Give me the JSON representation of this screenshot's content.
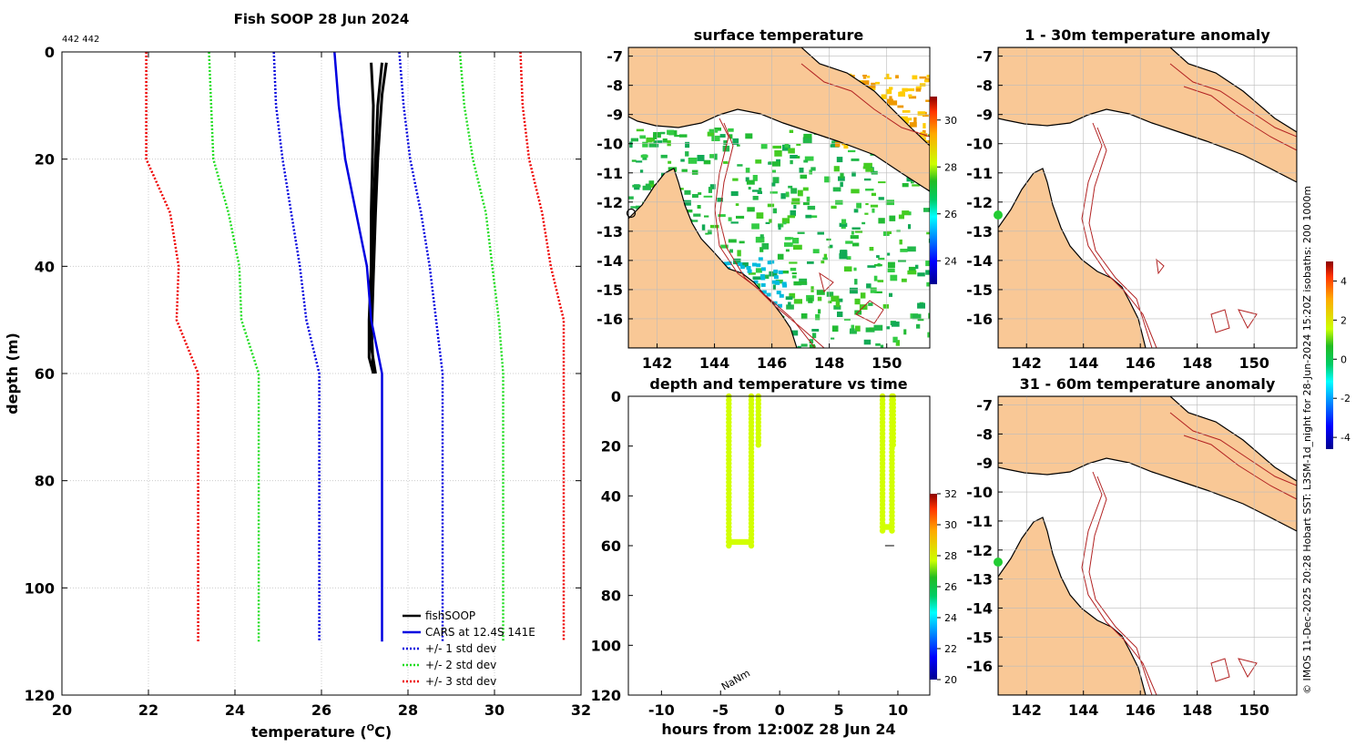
{
  "colors": {
    "land": "#f9c896",
    "coast": "#000000",
    "isobath": "#b22222",
    "fish": "#000000",
    "cars": "#0000e0",
    "sd1": "#0000dd",
    "sd2": "#22dd22",
    "sd3": "#ee0000",
    "surface_green": "#d2ff00",
    "station": "#22cc33",
    "grid": "#c8c8c8"
  },
  "chart_data": [
    {
      "id": "profile",
      "type": "line",
      "title": "Fish SOOP 28 Jun 2024",
      "corner_label": "442 442",
      "xlabel": "temperature (",
      "xlabel_sup": "O",
      "xlabel_end": "C)",
      "ylabel": "depth (m)",
      "xlim": [
        20,
        32
      ],
      "ylim": [
        0,
        120
      ],
      "y_reversed": true,
      "xticks": [
        "20",
        "22",
        "24",
        "26",
        "28",
        "30",
        "32"
      ],
      "yticks": [
        "0",
        "20",
        "40",
        "60",
        "80",
        "100",
        "120"
      ],
      "grid": true,
      "legend_position": "bottom-right",
      "legend": [
        {
          "label": "fishSOOP",
          "style": "solid",
          "color": "#000000"
        },
        {
          "label": "CARS at 12.4S 141E",
          "style": "solid",
          "color": "#0000e0"
        },
        {
          "label": "+/- 1 std dev",
          "style": "dotted",
          "color": "#0000dd"
        },
        {
          "label": "+/- 2 std dev",
          "style": "dotted",
          "color": "#22dd22"
        },
        {
          "label": "+/- 3 std dev",
          "style": "dotted",
          "color": "#ee0000"
        }
      ],
      "series": [
        {
          "name": "fishSOOP cast 1",
          "color": "#000000",
          "width": 3,
          "points": [
            [
              27.15,
              2
            ],
            [
              27.2,
              10
            ],
            [
              27.18,
              20
            ],
            [
              27.15,
              30
            ],
            [
              27.15,
              40
            ],
            [
              27.1,
              50
            ],
            [
              27.1,
              57
            ],
            [
              27.2,
              60
            ]
          ]
        },
        {
          "name": "fishSOOP cast 2",
          "color": "#000000",
          "width": 3,
          "points": [
            [
              27.4,
              2
            ],
            [
              27.3,
              10
            ],
            [
              27.25,
              20
            ],
            [
              27.2,
              30
            ],
            [
              27.2,
              40
            ],
            [
              27.15,
              50
            ],
            [
              27.2,
              60
            ]
          ]
        },
        {
          "name": "fishSOOP cast 3",
          "color": "#000000",
          "width": 3,
          "points": [
            [
              27.5,
              2
            ],
            [
              27.4,
              8
            ],
            [
              27.35,
              14
            ],
            [
              27.3,
              20
            ],
            [
              27.25,
              30
            ],
            [
              27.2,
              42
            ],
            [
              27.15,
              55
            ],
            [
              27.25,
              60
            ]
          ]
        },
        {
          "name": "CARS at 12.4S 141E",
          "color": "#0000e0",
          "width": 2.5,
          "points": [
            [
              26.3,
              0
            ],
            [
              26.4,
              10
            ],
            [
              26.55,
              20
            ],
            [
              26.8,
              30
            ],
            [
              27.05,
              40
            ],
            [
              27.15,
              50
            ],
            [
              27.4,
              60
            ],
            [
              27.4,
              110
            ]
          ]
        },
        {
          "name": "+1 std dev",
          "color": "#0000dd",
          "dash": true,
          "points": [
            [
              27.8,
              0
            ],
            [
              27.9,
              10
            ],
            [
              28.05,
              20
            ],
            [
              28.3,
              30
            ],
            [
              28.5,
              40
            ],
            [
              28.65,
              50
            ],
            [
              28.8,
              60
            ],
            [
              28.8,
              110
            ]
          ]
        },
        {
          "name": "-1 std dev",
          "color": "#0000dd",
          "dash": true,
          "points": [
            [
              24.9,
              0
            ],
            [
              24.95,
              10
            ],
            [
              25.1,
              20
            ],
            [
              25.3,
              30
            ],
            [
              25.5,
              40
            ],
            [
              25.65,
              50
            ],
            [
              25.95,
              60
            ],
            [
              25.95,
              110
            ]
          ]
        },
        {
          "name": "+2 std dev",
          "color": "#22dd22",
          "dash": true,
          "points": [
            [
              29.2,
              0
            ],
            [
              29.3,
              10
            ],
            [
              29.5,
              20
            ],
            [
              29.8,
              30
            ],
            [
              29.95,
              40
            ],
            [
              30.1,
              50
            ],
            [
              30.2,
              60
            ],
            [
              30.2,
              110
            ]
          ]
        },
        {
          "name": "-2 std dev",
          "color": "#22dd22",
          "dash": true,
          "points": [
            [
              23.4,
              0
            ],
            [
              23.45,
              10
            ],
            [
              23.5,
              20
            ],
            [
              23.85,
              30
            ],
            [
              24.1,
              40
            ],
            [
              24.15,
              50
            ],
            [
              24.55,
              60
            ],
            [
              24.55,
              110
            ]
          ]
        },
        {
          "name": "+3 std dev",
          "color": "#ee0000",
          "dash": true,
          "points": [
            [
              30.6,
              0
            ],
            [
              30.65,
              10
            ],
            [
              30.8,
              20
            ],
            [
              31.1,
              30
            ],
            [
              31.3,
              40
            ],
            [
              31.6,
              50
            ],
            [
              31.6,
              60
            ],
            [
              31.6,
              110
            ]
          ]
        },
        {
          "name": "-3 std dev",
          "color": "#ee0000",
          "dash": true,
          "points": [
            [
              21.95,
              0
            ],
            [
              21.95,
              10
            ],
            [
              21.95,
              20
            ],
            [
              22.5,
              30
            ],
            [
              22.7,
              40
            ],
            [
              22.65,
              50
            ],
            [
              23.15,
              60
            ],
            [
              23.15,
              110
            ]
          ]
        }
      ]
    },
    {
      "id": "surface_temp",
      "type": "heatmap",
      "title": "surface temperature",
      "xlim": [
        141,
        151.5
      ],
      "ylim": [
        -17,
        -6.7
      ],
      "xticks": [
        "142",
        "144",
        "146",
        "148",
        "150"
      ],
      "yticks": [
        "-7",
        "-8",
        "-9",
        "-10",
        "-11",
        "-12",
        "-13",
        "-14",
        "-15",
        "-16"
      ],
      "colorbar": {
        "ticks": [
          "30",
          "28",
          "26",
          "24"
        ],
        "range": [
          23,
          31
        ]
      },
      "grid": true
    },
    {
      "id": "anomaly_1_30",
      "type": "heatmap",
      "title": "1 - 30m temperature anomaly",
      "xlim": [
        141,
        151.5
      ],
      "ylim": [
        -17,
        -6.7
      ],
      "xticks": [
        "142",
        "144",
        "146",
        "148",
        "150"
      ],
      "yticks": [
        "-7",
        "-8",
        "-9",
        "-10",
        "-11",
        "-12",
        "-13",
        "-14",
        "-15",
        "-16"
      ],
      "colorbar": {
        "ticks": [
          "4",
          "2",
          "0",
          "-2",
          "-4"
        ],
        "range": [
          -4.6,
          5
        ]
      },
      "station": {
        "lon": 141,
        "lat": -12.4
      },
      "grid": true
    },
    {
      "id": "depth_temp_time",
      "type": "scatter",
      "title": "depth and temperature vs time",
      "xlabel": "hours from 12:00Z 28 Jun 24",
      "xlim": [
        -12.8,
        12.7
      ],
      "ylim": [
        0,
        120
      ],
      "y_reversed": true,
      "xticks": [
        "-10",
        "-5",
        "0",
        "5",
        "10"
      ],
      "yticks": [
        "0",
        "20",
        "40",
        "60",
        "80",
        "100",
        "120"
      ],
      "annotation": "NaNm",
      "colorbar": {
        "ticks": [
          "32",
          "30",
          "28",
          "26",
          "24",
          "22",
          "20"
        ],
        "range": [
          20,
          32
        ]
      },
      "casts": [
        {
          "x_down": -4.3,
          "x_up": -2.4,
          "bottom_depth": 60,
          "x_top2": -1.8
        },
        {
          "x_down": 8.7,
          "x_up": 9.5,
          "bottom_depth": 54,
          "x_top2": 9.6
        }
      ],
      "bottom_marker": {
        "x": 9.3,
        "depth": 60
      }
    },
    {
      "id": "anomaly_31_60",
      "type": "heatmap",
      "title": "31 - 60m temperature anomaly",
      "xlim": [
        141,
        151.5
      ],
      "ylim": [
        -17,
        -6.7
      ],
      "xticks": [
        "142",
        "144",
        "146",
        "148",
        "150"
      ],
      "yticks": [
        "-7",
        "-8",
        "-9",
        "-10",
        "-11",
        "-12",
        "-13",
        "-14",
        "-15",
        "-16"
      ],
      "station": {
        "lon": 141,
        "lat": -12.4
      },
      "grid": true
    }
  ],
  "side_caption": "© IMOS 11-Dec-2025 20:28 Hobart SST: L3SM-1d_night for 28-Jun-2024 15:20Z isobaths: 200  1000m"
}
